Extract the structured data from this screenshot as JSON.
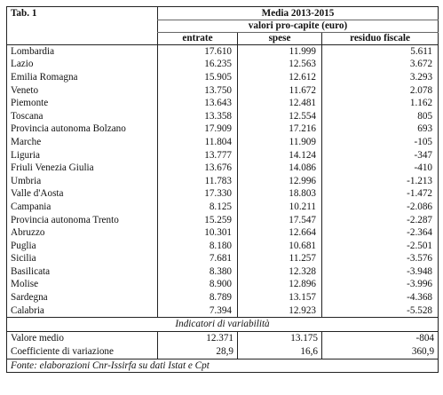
{
  "table": {
    "label": "Tab. 1",
    "period_header": "Media 2013-2015",
    "unit_header": "valori pro-capite (euro)",
    "columns": [
      "entrate",
      "spese",
      "residuo fiscale"
    ],
    "rows": [
      {
        "region": "Lombardia",
        "entrate": "17.610",
        "spese": "11.999",
        "residuo": "5.611"
      },
      {
        "region": "Lazio",
        "entrate": "16.235",
        "spese": "12.563",
        "residuo": "3.672"
      },
      {
        "region": "Emilia Romagna",
        "entrate": "15.905",
        "spese": "12.612",
        "residuo": "3.293"
      },
      {
        "region": "Veneto",
        "entrate": "13.750",
        "spese": "11.672",
        "residuo": "2.078"
      },
      {
        "region": "Piemonte",
        "entrate": "13.643",
        "spese": "12.481",
        "residuo": "1.162"
      },
      {
        "region": "Toscana",
        "entrate": "13.358",
        "spese": "12.554",
        "residuo": "805"
      },
      {
        "region": "Provincia autonoma Bolzano",
        "entrate": "17.909",
        "spese": "17.216",
        "residuo": "693"
      },
      {
        "region": "Marche",
        "entrate": "11.804",
        "spese": "11.909",
        "residuo": "-105"
      },
      {
        "region": "Liguria",
        "entrate": "13.777",
        "spese": "14.124",
        "residuo": "-347"
      },
      {
        "region": "Friuli Venezia Giulia",
        "entrate": "13.676",
        "spese": "14.086",
        "residuo": "-410"
      },
      {
        "region": "Umbria",
        "entrate": "11.783",
        "spese": "12.996",
        "residuo": "-1.213"
      },
      {
        "region": "Valle d'Aosta",
        "entrate": "17.330",
        "spese": "18.803",
        "residuo": "-1.472"
      },
      {
        "region": "Campania",
        "entrate": "8.125",
        "spese": "10.211",
        "residuo": "-2.086"
      },
      {
        "region": "Provincia autonoma Trento",
        "entrate": "15.259",
        "spese": "17.547",
        "residuo": "-2.287"
      },
      {
        "region": "Abruzzo",
        "entrate": "10.301",
        "spese": "12.664",
        "residuo": "-2.364"
      },
      {
        "region": "Puglia",
        "entrate": "8.180",
        "spese": "10.681",
        "residuo": "-2.501"
      },
      {
        "region": "Sicilia",
        "entrate": "7.681",
        "spese": "11.257",
        "residuo": "-3.576"
      },
      {
        "region": "Basilicata",
        "entrate": "8.380",
        "spese": "12.328",
        "residuo": "-3.948"
      },
      {
        "region": "Molise",
        "entrate": "8.900",
        "spese": "12.896",
        "residuo": "-3.996"
      },
      {
        "region": "Sardegna",
        "entrate": "8.789",
        "spese": "13.157",
        "residuo": "-4.368"
      },
      {
        "region": "Calabria",
        "entrate": "7.394",
        "spese": "12.923",
        "residuo": "-5.528"
      }
    ],
    "variability_header": "Indicatori di variabilità",
    "stats": [
      {
        "label": "Valore medio",
        "entrate": "12.371",
        "spese": "13.175",
        "residuo": "-804"
      },
      {
        "label": "Coefficiente di variazione",
        "entrate": "28,9",
        "spese": "16,6",
        "residuo": "360,9"
      }
    ],
    "source": "Fonte: elaborazioni Cnr-Issirfa su dati Istat e Cpt"
  }
}
